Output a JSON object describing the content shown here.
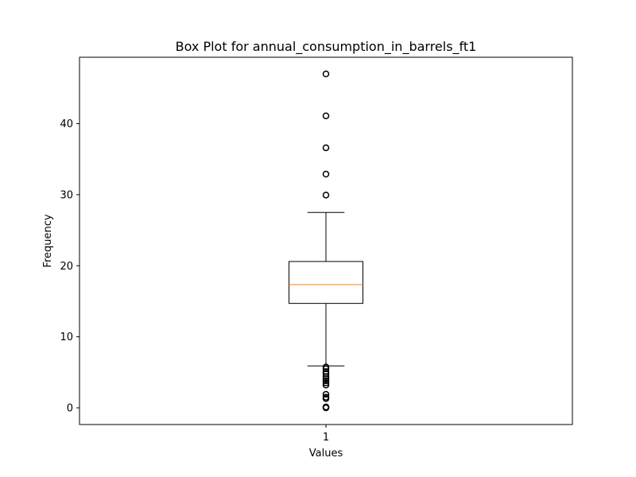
{
  "chart_data": {
    "type": "box",
    "title": "Box Plot for annual_consumption_in_barrels_ft1",
    "xlabel": "Values",
    "ylabel": "Frequency",
    "ylim": [
      -2.35,
      49.35
    ],
    "y_ticks": [
      0,
      10,
      20,
      30,
      40
    ],
    "x_ticks": [
      "1"
    ],
    "grid": false,
    "legend": false,
    "boxes": [
      {
        "category": "1",
        "q1": 14.7,
        "median": 17.35,
        "q3": 20.6,
        "whisker_low": 5.9,
        "whisker_high": 27.5,
        "outliers": [
          0.0,
          0.06,
          0.12,
          1.3,
          1.5,
          1.9,
          3.2,
          3.5,
          3.8,
          4.1,
          4.4,
          4.8,
          5.1,
          5.5,
          5.75,
          29.95,
          32.9,
          36.6,
          41.1,
          47.0
        ]
      }
    ],
    "colors": {
      "median": "#ff7f0e",
      "box": "#000000",
      "outlier": "#000000"
    }
  }
}
